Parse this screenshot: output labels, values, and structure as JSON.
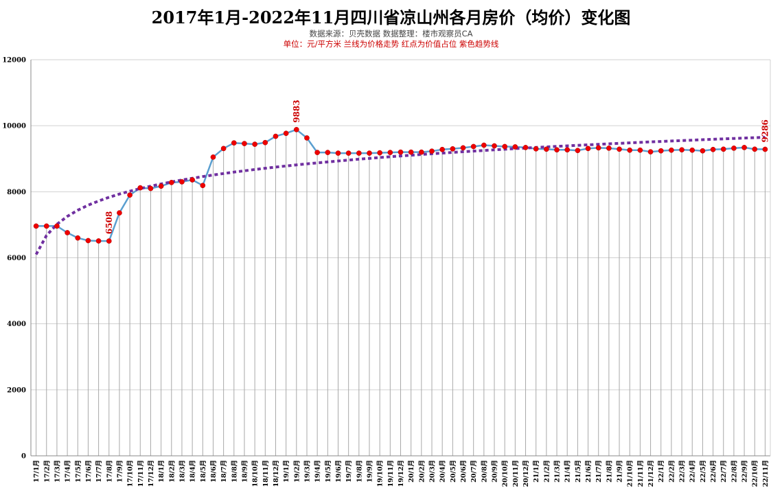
{
  "chart_data": {
    "type": "line",
    "title": "2017年1月-2022年11月四川省凉山州各月房价（均价）变化图",
    "subtitle": "数据来源：贝壳数据      数据整理：楼市观察员CA",
    "note": "单位：元/平方米    兰线为价格走势    红点为价值占位      紫色趋势线",
    "xlabel": "",
    "ylabel": "",
    "ylim": [
      0,
      12000
    ],
    "yticks": [
      0,
      2000,
      4000,
      6000,
      8000,
      10000,
      12000
    ],
    "grid": true,
    "categories": [
      "17/1月",
      "17/2月",
      "17/3月",
      "17/4月",
      "17/5月",
      "17/6月",
      "17/7月",
      "17/8月",
      "17/9月",
      "17/10月",
      "17/11月",
      "17/12月",
      "18/1月",
      "18/2月",
      "18/3月",
      "18/4月",
      "18/5月",
      "18/6月",
      "18/7月",
      "18/8月",
      "18/9月",
      "18/10月",
      "18/11月",
      "18/12月",
      "19/1月",
      "19/2月",
      "19/3月",
      "19/4月",
      "19/5月",
      "19/6月",
      "19/7月",
      "19/8月",
      "19/9月",
      "19/10月",
      "19/11月",
      "19/12月",
      "20/1月",
      "20/2月",
      "20/3月",
      "20/4月",
      "20/5月",
      "20/6月",
      "20/7月",
      "20/8月",
      "20/9月",
      "20/10月",
      "20/11月",
      "20/12月",
      "21/1月",
      "21/2月",
      "21/3月",
      "21/4月",
      "21/5月",
      "21/6月",
      "21/7月",
      "21/8月",
      "21/9月",
      "21/10月",
      "21/11月",
      "21/12月",
      "22/1月",
      "22/2月",
      "22/3月",
      "22/4月",
      "22/5月",
      "22/6月",
      "22/7月",
      "22/8月",
      "22/9月",
      "22/10月",
      "22/11月"
    ],
    "series": [
      {
        "values": [
          6960,
          6960,
          6960,
          6760,
          6600,
          6520,
          6510,
          6508,
          7360,
          7900,
          8120,
          8100,
          8170,
          8280,
          8300,
          8360,
          8190,
          9050,
          9310,
          9480,
          9460,
          9440,
          9490,
          9680,
          9770,
          9883,
          9630,
          9190,
          9190,
          9170,
          9170,
          9170,
          9170,
          9180,
          9190,
          9200,
          9200,
          9200,
          9230,
          9280,
          9300,
          9330,
          9370,
          9410,
          9390,
          9370,
          9360,
          9340,
          9300,
          9290,
          9270,
          9270,
          9250,
          9310,
          9330,
          9320,
          9290,
          9260,
          9260,
          9210,
          9240,
          9260,
          9270,
          9260,
          9240,
          9280,
          9290,
          9320,
          9340,
          9290,
          9286
        ],
        "color": "#5a9fd0",
        "marker_color": "#ee0000"
      }
    ],
    "trend": {
      "type": "log",
      "start_value": 6100,
      "end_value": 9650,
      "color": "#7030a0"
    },
    "data_labels": [
      {
        "category": "17/8月",
        "text": "6508"
      },
      {
        "category": "19/2月",
        "text": "9883"
      },
      {
        "category": "22/11月",
        "text": "9286"
      }
    ]
  }
}
